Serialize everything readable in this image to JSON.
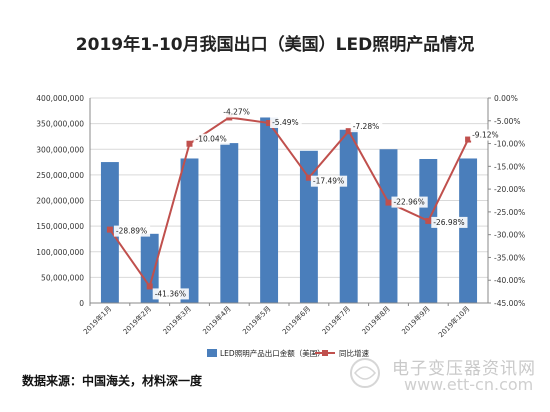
{
  "title": "2019年1-10月我国出口（美国）LED照明产品情况",
  "source_note": "数据来源：中国海关，材料深一度",
  "watermark": {
    "site_name": "电子变压器资讯网",
    "url": "www.ett-cn.com"
  },
  "colors": {
    "bar": "#4A7EBB",
    "line": "#C0504D",
    "grid": "#d9d9d9",
    "axis": "#888888"
  },
  "chart_data": {
    "type": "bar",
    "categories": [
      "2019年1月",
      "2019年2月",
      "2019年3月",
      "2019年4月",
      "2019年5月",
      "2019年6月",
      "2019年7月",
      "2019年8月",
      "2019年9月",
      "2019年10月"
    ],
    "series": [
      {
        "name": "LED照明产品出口金额（美国）",
        "type": "bar",
        "axis": "left",
        "values": [
          275000000,
          135000000,
          282000000,
          312000000,
          362000000,
          297000000,
          338000000,
          300000000,
          281000000,
          282000000
        ]
      },
      {
        "name": "同比增速",
        "type": "line",
        "axis": "right",
        "values": [
          -28.89,
          -41.36,
          -10.04,
          -4.27,
          -5.49,
          -17.49,
          -7.28,
          -22.96,
          -26.98,
          -9.12
        ],
        "labels": [
          "-28.89%",
          "-41.36%",
          "-10.04%",
          "-4.27%",
          "-5.49%",
          "-17.49%",
          "-7.28%",
          "-22.96%",
          "-26.98%",
          "-9.12%"
        ]
      }
    ],
    "left_axis": {
      "min": 0,
      "max": 400000000,
      "step": 50000000,
      "tick_labels": [
        "0",
        "50,000,000",
        "100,000,000",
        "150,000,000",
        "200,000,000",
        "250,000,000",
        "300,000,000",
        "350,000,000",
        "400,000,000"
      ]
    },
    "right_axis": {
      "min": -45,
      "max": 0,
      "step": 5,
      "tick_labels": [
        "-45.00%",
        "-40.00%",
        "-35.00%",
        "-30.00%",
        "-25.00%",
        "-20.00%",
        "-15.00%",
        "-10.00%",
        "-5.00%",
        "0.00%"
      ]
    },
    "grid": true,
    "legend_position": "bottom"
  }
}
